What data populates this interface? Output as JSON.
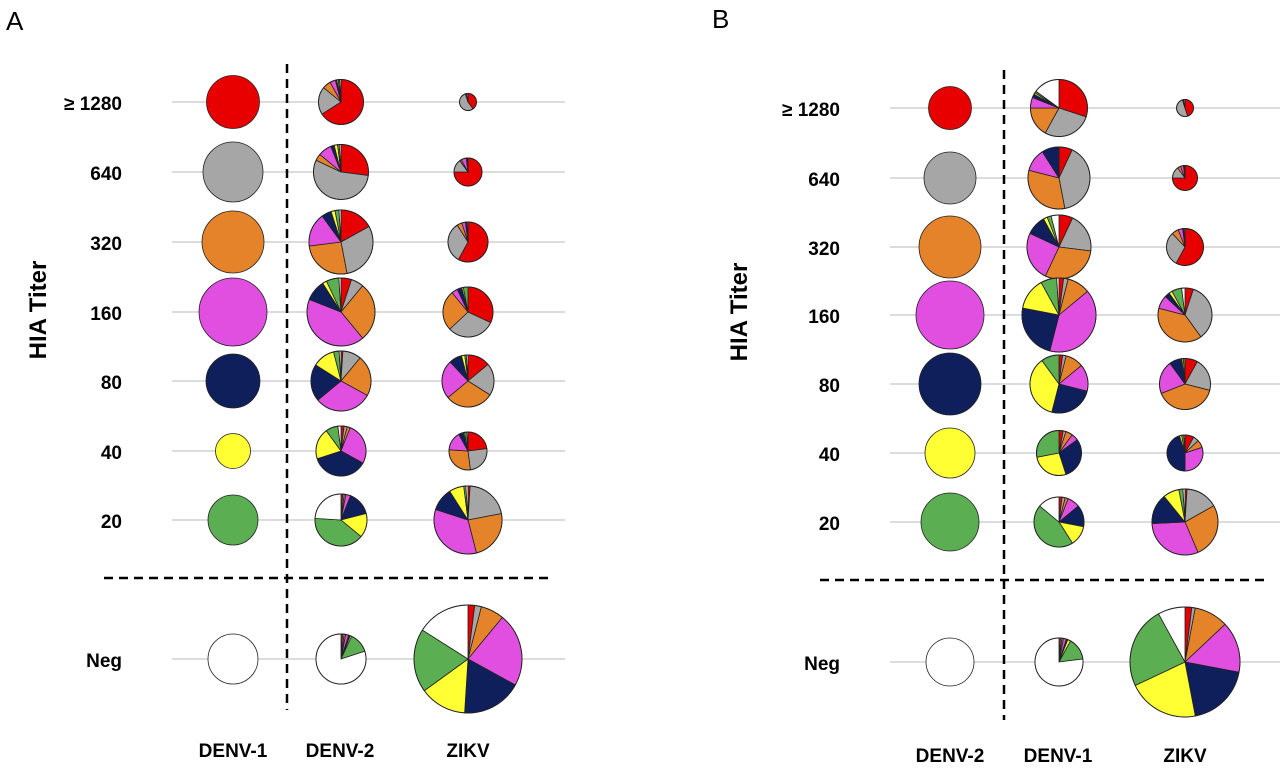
{
  "colors": {
    "Neg": "#ffffff",
    "20": "#5cae53",
    "40": "#ffff33",
    "80": "#0f1f5c",
    "160": "#e04fdf",
    "320": "#e5832a",
    "640": "#a6a6a6",
    "≥ 1280": "#e80000"
  },
  "chart_data": [
    {
      "type": "pie",
      "panel": "A",
      "ylabel": "HIA Titer",
      "rows": [
        "≥ 1280",
        "640",
        "320",
        "160",
        "80",
        "40",
        "20",
        "Neg"
      ],
      "columns": [
        "DENV-1",
        "DENV-2",
        "ZIKV"
      ],
      "slice_order": [
        "≥ 1280",
        "640",
        "320",
        "160",
        "80",
        "40",
        "20",
        "Neg"
      ],
      "pies": {
        "DENV-1": {
          "≥ 1280": {
            "size": 0.53,
            "slices": [
              1,
              0,
              0,
              0,
              0,
              0,
              0,
              0
            ]
          },
          "640": {
            "size": 0.6,
            "slices": [
              0,
              1,
              0,
              0,
              0,
              0,
              0,
              0
            ]
          },
          "320": {
            "size": 0.62,
            "slices": [
              0,
              0,
              1,
              0,
              0,
              0,
              0,
              0
            ]
          },
          "160": {
            "size": 0.68,
            "slices": [
              0,
              0,
              0,
              1,
              0,
              0,
              0,
              0
            ]
          },
          "80": {
            "size": 0.54,
            "slices": [
              0,
              0,
              0,
              0,
              1,
              0,
              0,
              0
            ]
          },
          "40": {
            "size": 0.35,
            "slices": [
              0,
              0,
              0,
              0,
              0,
              1,
              0,
              0
            ]
          },
          "20": {
            "size": 0.5,
            "slices": [
              0,
              0,
              0,
              0,
              0,
              0,
              1,
              0
            ]
          },
          "Neg": {
            "size": 0.5,
            "slices": [
              0,
              0,
              0,
              0,
              0,
              0,
              0,
              1
            ]
          }
        },
        "DENV-2": {
          "≥ 1280": {
            "size": 0.45,
            "slices": [
              0.66,
              0.2,
              0.06,
              0.04,
              0.01,
              0.01,
              0.01,
              0.01
            ]
          },
          "640": {
            "size": 0.55,
            "slices": [
              0.27,
              0.55,
              0.04,
              0.08,
              0.02,
              0.02,
              0.01,
              0.01
            ]
          },
          "320": {
            "size": 0.64,
            "slices": [
              0.17,
              0.3,
              0.26,
              0.17,
              0.05,
              0.02,
              0.02,
              0.01
            ]
          },
          "160": {
            "size": 0.68,
            "slices": [
              0.05,
              0.06,
              0.28,
              0.42,
              0.1,
              0.02,
              0.06,
              0.01
            ]
          },
          "80": {
            "size": 0.6,
            "slices": [
              0.01,
              0.1,
              0.22,
              0.31,
              0.2,
              0.12,
              0.03,
              0.01
            ]
          },
          "40": {
            "size": 0.5,
            "slices": [
              0.02,
              0.02,
              0.02,
              0.27,
              0.37,
              0.2,
              0.08,
              0.02
            ]
          },
          "20": {
            "size": 0.52,
            "slices": [
              0.01,
              0.01,
              0.01,
              0.03,
              0.15,
              0.15,
              0.4,
              0.24
            ]
          },
          "Neg": {
            "size": 0.5,
            "slices": [
              0.01,
              0.01,
              0.01,
              0.02,
              0.01,
              0.01,
              0.13,
              0.8
            ]
          }
        },
        "ZIKV": {
          "≥ 1280": {
            "size": 0.17,
            "slices": [
              0.4,
              0.55,
              0.02,
              0.03,
              0,
              0,
              0,
              0
            ]
          },
          "640": {
            "size": 0.28,
            "slices": [
              0.75,
              0.15,
              0.02,
              0.06,
              0.01,
              0.01,
              0,
              0
            ]
          },
          "320": {
            "size": 0.4,
            "slices": [
              0.58,
              0.33,
              0.04,
              0.03,
              0.01,
              0,
              0.01,
              0
            ]
          },
          "160": {
            "size": 0.5,
            "slices": [
              0.32,
              0.31,
              0.26,
              0.04,
              0.03,
              0.01,
              0.03,
              0
            ]
          },
          "80": {
            "size": 0.52,
            "slices": [
              0.14,
              0.2,
              0.3,
              0.24,
              0.08,
              0.02,
              0.01,
              0.01
            ]
          },
          "40": {
            "size": 0.38,
            "slices": [
              0.23,
              0.25,
              0.28,
              0.16,
              0.04,
              0.01,
              0.02,
              0.01
            ]
          },
          "20": {
            "size": 0.68,
            "slices": [
              0.01,
              0.21,
              0.24,
              0.34,
              0.11,
              0.07,
              0.01,
              0.01
            ]
          },
          "Neg": {
            "size": 1.08,
            "slices": [
              0.02,
              0.02,
              0.07,
              0.22,
              0.18,
              0.14,
              0.19,
              0.16
            ]
          }
        }
      }
    },
    {
      "type": "pie",
      "panel": "B",
      "ylabel": "HIA Titer",
      "rows": [
        "≥ 1280",
        "640",
        "320",
        "160",
        "80",
        "40",
        "20",
        "Neg"
      ],
      "columns": [
        "DENV-2",
        "DENV-1",
        "ZIKV"
      ],
      "slice_order": [
        "≥ 1280",
        "640",
        "320",
        "160",
        "80",
        "40",
        "20",
        "Neg"
      ],
      "pies": {
        "DENV-2": {
          "≥ 1280": {
            "size": 0.43,
            "slices": [
              1,
              0,
              0,
              0,
              0,
              0,
              0,
              0
            ]
          },
          "640": {
            "size": 0.52,
            "slices": [
              0,
              1,
              0,
              0,
              0,
              0,
              0,
              0
            ]
          },
          "320": {
            "size": 0.62,
            "slices": [
              0,
              0,
              1,
              0,
              0,
              0,
              0,
              0
            ]
          },
          "160": {
            "size": 0.68,
            "slices": [
              0,
              0,
              0,
              1,
              0,
              0,
              0,
              0
            ]
          },
          "80": {
            "size": 0.62,
            "slices": [
              0,
              0,
              0,
              0,
              1,
              0,
              0,
              0
            ]
          },
          "40": {
            "size": 0.5,
            "slices": [
              0,
              0,
              0,
              0,
              0,
              1,
              0,
              0
            ]
          },
          "20": {
            "size": 0.58,
            "slices": [
              0,
              0,
              0,
              0,
              0,
              0,
              1,
              0
            ]
          },
          "Neg": {
            "size": 0.48,
            "slices": [
              0,
              0,
              0,
              0,
              0,
              0,
              0,
              1
            ]
          }
        },
        "DENV-1": {
          "≥ 1280": {
            "size": 0.57,
            "slices": [
              0.3,
              0.28,
              0.17,
              0.06,
              0.02,
              0.01,
              0.01,
              0.15
            ]
          },
          "640": {
            "size": 0.62,
            "slices": [
              0.07,
              0.4,
              0.32,
              0.12,
              0.09
            ]
          },
          "320": {
            "size": 0.64,
            "slices": [
              0.07,
              0.2,
              0.3,
              0.25,
              0.1,
              0.02,
              0.02,
              0.04
            ]
          },
          "160": {
            "size": 0.74,
            "slices": [
              0.02,
              0.02,
              0.1,
              0.4,
              0.24,
              0.14,
              0.07,
              0.01
            ]
          },
          "80": {
            "size": 0.58,
            "slices": [
              0.02,
              0.02,
              0.1,
              0.15,
              0.25,
              0.36,
              0.1
            ]
          },
          "40": {
            "size": 0.45,
            "slices": [
              0.03,
              0.02,
              0.05,
              0.05,
              0.3,
              0.27,
              0.28
            ]
          },
          "20": {
            "size": 0.5,
            "slices": [
              0.02,
              0.02,
              0.02,
              0.08,
              0.14,
              0.13,
              0.45,
              0.14
            ]
          },
          "Neg": {
            "size": 0.48,
            "slices": [
              0.01,
              0.01,
              0.01,
              0.02,
              0.01,
              0.02,
              0.15,
              0.77
            ]
          }
        },
        "ZIKV": {
          "≥ 1280": {
            "size": 0.17,
            "slices": [
              0.45,
              0.5,
              0.02,
              0.03
            ]
          },
          "640": {
            "size": 0.25,
            "slices": [
              0.75,
              0.15,
              0.04,
              0.04,
              0.01,
              0.01
            ]
          },
          "320": {
            "size": 0.37,
            "slices": [
              0.58,
              0.3,
              0.06,
              0.04,
              0.01,
              0,
              0.01
            ]
          },
          "160": {
            "size": 0.54,
            "slices": [
              0.05,
              0.35,
              0.39,
              0.08,
              0.03,
              0.02,
              0.06,
              0.02
            ]
          },
          "80": {
            "size": 0.51,
            "slices": [
              0.08,
              0.21,
              0.4,
              0.21,
              0.08,
              0.01,
              0.01
            ]
          },
          "40": {
            "size": 0.36,
            "slices": [
              0.08,
              0.05,
              0.07,
              0.3,
              0.45,
              0.02,
              0.02,
              0.01
            ]
          },
          "20": {
            "size": 0.66,
            "slices": [
              0.01,
              0.16,
              0.27,
              0.31,
              0.15,
              0.08,
              0.02,
              0.01
            ]
          },
          "Neg": {
            "size": 1.1,
            "slices": [
              0.02,
              0.01,
              0.1,
              0.15,
              0.19,
              0.21,
              0.24,
              0.08
            ]
          }
        }
      }
    }
  ]
}
